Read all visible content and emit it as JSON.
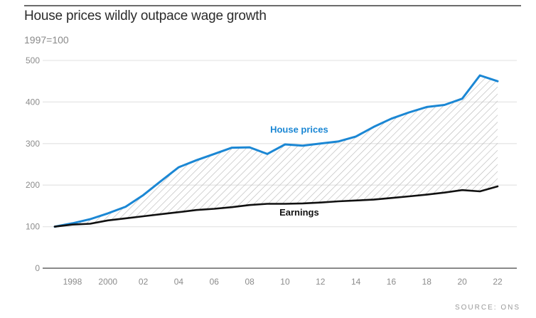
{
  "header": {
    "title": "House prices wildly outpace wage growth",
    "subtitle": "1997=100"
  },
  "footer": {
    "source": "SOURCE: ONS"
  },
  "colors": {
    "house_prices": "#1b87d4",
    "earnings": "#111111",
    "hatch": "#b5b5b5",
    "grid": "#e6e6e6",
    "axis": "#8a8a8a"
  },
  "chart_data": {
    "type": "line",
    "title": "House prices wildly outpace wage growth",
    "subtitle": "1997=100",
    "xlabel": "",
    "ylabel": "1997=100",
    "xlim": [
      1997,
      2022
    ],
    "ylim": [
      0,
      500
    ],
    "yticks": [
      0,
      100,
      200,
      300,
      400,
      500
    ],
    "ytick_labels": [
      "0",
      "100",
      "200",
      "300",
      "400",
      "500"
    ],
    "xticks": [
      1998,
      2000,
      2002,
      2004,
      2006,
      2008,
      2010,
      2012,
      2014,
      2016,
      2018,
      2020,
      2022
    ],
    "xtick_labels": [
      "1998",
      "2000",
      "02",
      "04",
      "06",
      "08",
      "10",
      "12",
      "14",
      "16",
      "18",
      "20",
      "22"
    ],
    "grid": true,
    "legend": "inline-labels",
    "shaded_gap": "hatched area between house prices and earnings",
    "x": [
      1997,
      1998,
      1999,
      2000,
      2001,
      2002,
      2003,
      2004,
      2005,
      2006,
      2007,
      2008,
      2009,
      2010,
      2011,
      2012,
      2013,
      2014,
      2015,
      2016,
      2017,
      2018,
      2019,
      2020,
      2021,
      2022
    ],
    "series": [
      {
        "name": "House prices",
        "label": "House prices",
        "values": [
          100,
          108,
          118,
          132,
          148,
          176,
          210,
          243,
          260,
          275,
          290,
          291,
          275,
          298,
          295,
          300,
          305,
          317,
          340,
          360,
          375,
          388,
          393,
          408,
          464,
          450
        ]
      },
      {
        "name": "Earnings",
        "label": "Earnings",
        "values": [
          100,
          105,
          107,
          115,
          120,
          125,
          130,
          135,
          140,
          143,
          147,
          152,
          155,
          155,
          156,
          158,
          161,
          163,
          165,
          169,
          173,
          177,
          182,
          188,
          185,
          197
        ]
      }
    ],
    "source": "SOURCE: ONS"
  }
}
